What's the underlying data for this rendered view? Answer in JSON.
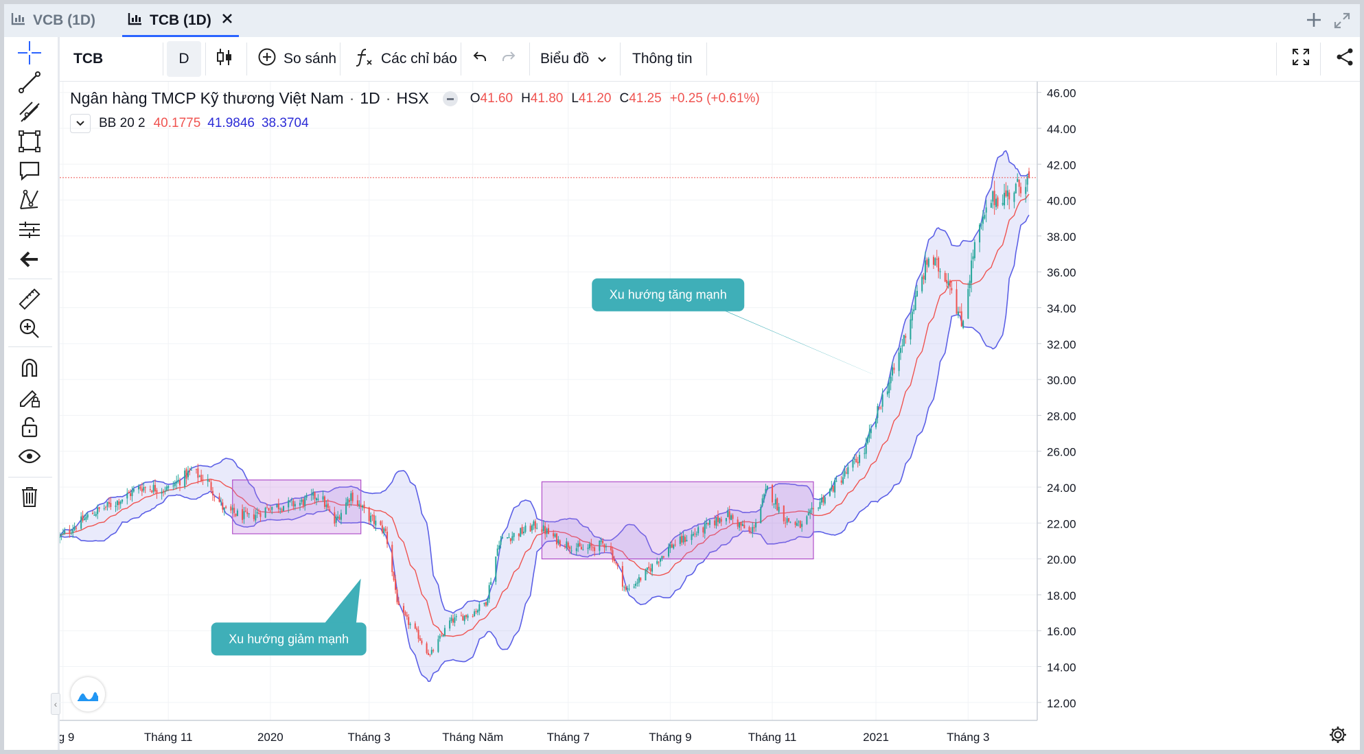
{
  "tabs": [
    {
      "label": "VCB (1D)",
      "active": false
    },
    {
      "label": "TCB (1D)",
      "active": true
    }
  ],
  "toolbar": {
    "symbol": "TCB",
    "interval": "D",
    "compare": "So sánh",
    "indicators": "Các chỉ báo",
    "chart_type": "Biểu đồ",
    "info": "Thông tin"
  },
  "legend": {
    "title": "Ngân hàng TMCP Kỹ thương Việt Nam",
    "interval": "1D",
    "exchange": "HSX",
    "o_label": "O",
    "o": "41.60",
    "h_label": "H",
    "h": "41.80",
    "l_label": "L",
    "l": "41.20",
    "c_label": "C",
    "c": "41.25",
    "change": "+0.25 (+0.61%)",
    "bb_name": "BB 20 2",
    "bb_basis": "40.1775",
    "bb_upper": "41.9846",
    "bb_lower": "38.3704"
  },
  "left_tools": [
    "crosshair-icon",
    "trendline-icon",
    "fib-icon",
    "rectangle-icon",
    "comment-icon",
    "pattern-icon",
    "prediction-icon",
    "back-arrow-icon",
    "ruler-icon",
    "zoom-in-icon",
    "magnet-icon",
    "lock-draw-icon",
    "unlock-icon",
    "eye-icon",
    "trash-icon"
  ],
  "colors": {
    "up": "#26a69a",
    "down": "#ef5350",
    "basis": "#ef5350",
    "band": "#5b5fe6",
    "band_fill": "rgba(120,123,230,0.16)",
    "box_fill": "rgba(192,120,220,0.28)",
    "box_stroke": "#b04fc9",
    "callout": "#3fafb8",
    "price_line": "#ef5350"
  },
  "chart_data": {
    "type": "candlestick",
    "title": "Ngân hàng TMCP Kỹ thương Việt Nam",
    "last_price": "41.25",
    "ylim": [
      11.0,
      46.6
    ],
    "y_ticks": [
      "12.00",
      "14.00",
      "16.00",
      "18.00",
      "20.00",
      "22.00",
      "24.00",
      "26.00",
      "28.00",
      "30.00",
      "32.00",
      "34.00",
      "36.00",
      "38.00",
      "40.00",
      "42.00",
      "44.00",
      "46.00"
    ],
    "x_range": [
      "2019-08-27",
      "2021-04-07"
    ],
    "x_ticks": [
      {
        "label": "ng 9",
        "date": "2019-08-29"
      },
      {
        "label": "Tháng 11",
        "date": "2019-11-01"
      },
      {
        "label": "2020",
        "date": "2020-01-02"
      },
      {
        "label": "Tháng 3",
        "date": "2020-03-02"
      },
      {
        "label": "Tháng Năm",
        "date": "2020-05-04"
      },
      {
        "label": "Tháng 7",
        "date": "2020-07-01"
      },
      {
        "label": "Tháng 9",
        "date": "2020-09-01"
      },
      {
        "label": "Tháng 11",
        "date": "2020-11-02"
      },
      {
        "label": "2021",
        "date": "2021-01-04"
      },
      {
        "label": "Tháng 3",
        "date": "2021-03-01"
      }
    ],
    "close_path": [
      [
        "2019-08-27",
        21.2
      ],
      [
        "2019-09-15",
        22.5
      ],
      [
        "2019-10-01",
        23.2
      ],
      [
        "2019-10-15",
        24.0
      ],
      [
        "2019-11-01",
        23.9
      ],
      [
        "2019-11-15",
        24.9
      ],
      [
        "2019-11-25",
        24.3
      ],
      [
        "2019-12-05",
        22.7
      ],
      [
        "2019-12-20",
        22.3
      ],
      [
        "2020-01-02",
        22.9
      ],
      [
        "2020-01-20",
        23.1
      ],
      [
        "2020-02-01",
        23.6
      ],
      [
        "2020-02-10",
        22.0
      ],
      [
        "2020-02-20",
        23.6
      ],
      [
        "2020-03-01",
        22.4
      ],
      [
        "2020-03-12",
        21.5
      ],
      [
        "2020-03-20",
        17.2
      ],
      [
        "2020-04-01",
        15.7
      ],
      [
        "2020-04-08",
        14.6
      ],
      [
        "2020-04-20",
        16.5
      ],
      [
        "2020-05-04",
        17.0
      ],
      [
        "2020-05-12",
        17.6
      ],
      [
        "2020-05-20",
        21.0
      ],
      [
        "2020-06-05",
        21.6
      ],
      [
        "2020-06-12",
        21.9
      ],
      [
        "2020-06-25",
        21.0
      ],
      [
        "2020-07-10",
        20.5
      ],
      [
        "2020-07-25",
        20.9
      ],
      [
        "2020-08-05",
        18.2
      ],
      [
        "2020-08-15",
        19.0
      ],
      [
        "2020-09-01",
        20.7
      ],
      [
        "2020-09-20",
        21.6
      ],
      [
        "2020-10-05",
        22.5
      ],
      [
        "2020-10-20",
        21.4
      ],
      [
        "2020-10-30",
        23.9
      ],
      [
        "2020-11-10",
        22.2
      ],
      [
        "2020-11-20",
        21.8
      ],
      [
        "2020-12-01",
        23.2
      ],
      [
        "2020-12-15",
        24.6
      ],
      [
        "2020-12-28",
        26.0
      ],
      [
        "2021-01-08",
        29.0
      ],
      [
        "2021-01-15",
        30.5
      ],
      [
        "2021-01-25",
        33.5
      ],
      [
        "2021-02-05",
        36.8
      ],
      [
        "2021-02-18",
        35.5
      ],
      [
        "2021-02-25",
        33.0
      ],
      [
        "2021-03-05",
        37.5
      ],
      [
        "2021-03-15",
        40.0
      ],
      [
        "2021-03-25",
        40.3
      ],
      [
        "2021-04-07",
        41.25
      ]
    ],
    "bollinger": {
      "period": 20,
      "stddev": 2
    },
    "annotations": [
      {
        "type": "rect",
        "x1": "2019-12-10",
        "x2": "2020-02-26",
        "y1": 21.4,
        "y2": 24.4
      },
      {
        "type": "rect",
        "x1": "2020-06-15",
        "x2": "2020-11-27",
        "y1": 20.0,
        "y2": 24.3
      },
      {
        "type": "callout",
        "text": "Xu hướng giảm mạnh",
        "anchor_date": "2020-02-26",
        "anchor_value": 18.9
      },
      {
        "type": "callout",
        "text": "Xu hướng tăng mạnh",
        "anchor_date": "2021-01-12",
        "anchor_value": 29.9
      }
    ]
  }
}
